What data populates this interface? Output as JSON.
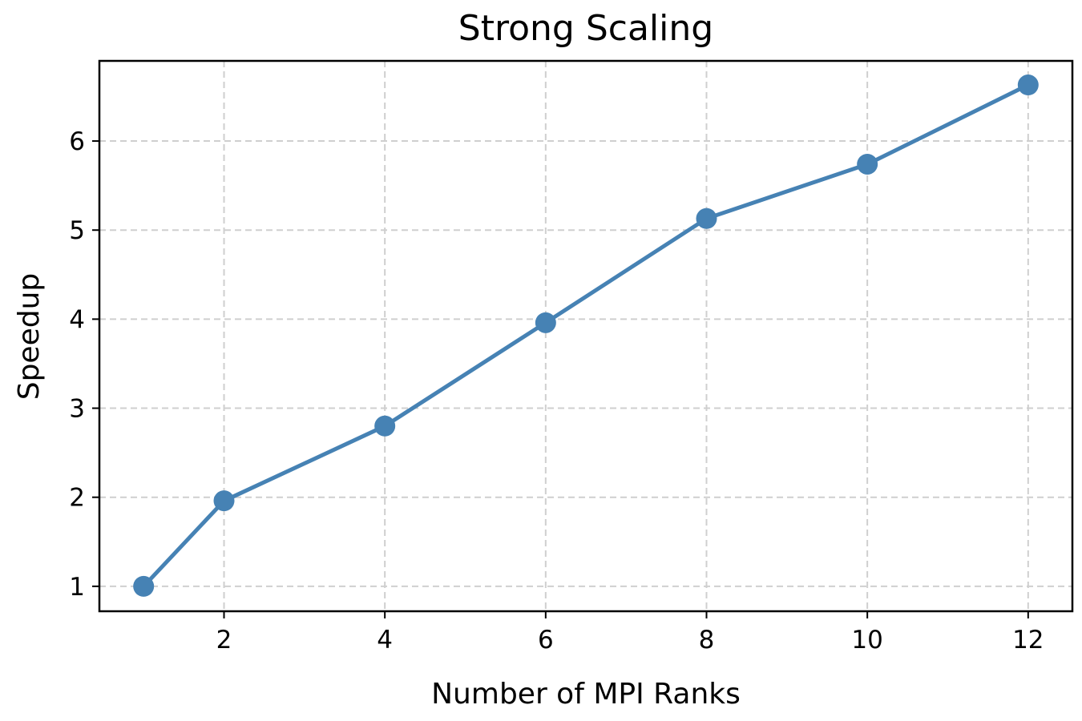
{
  "chart_data": {
    "type": "line",
    "title": "Strong Scaling",
    "xlabel": "Number of MPI Ranks",
    "ylabel": "Speedup",
    "xlim": [
      0.45,
      12.55
    ],
    "ylim": [
      0.72,
      6.9
    ],
    "xticks": [
      2,
      4,
      6,
      8,
      10,
      12
    ],
    "yticks": [
      1,
      2,
      3,
      4,
      5,
      6
    ],
    "grid": true,
    "series": [
      {
        "color": "#4682b4",
        "x": [
          1,
          2,
          4,
          6,
          8,
          10,
          12
        ],
        "y": [
          1.0,
          1.96,
          2.8,
          3.96,
          5.13,
          5.74,
          6.63
        ]
      }
    ]
  }
}
